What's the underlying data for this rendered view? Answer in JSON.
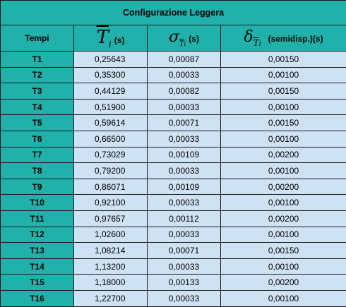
{
  "title": "Configurazione Leggera",
  "headers": {
    "col0": "Tempi",
    "col1_symbol": "T",
    "col1_sub": "i",
    "col1_unit": "(s)",
    "col2_symbol": "σ",
    "col2_sub_symbol": "T",
    "col2_sub": "i",
    "col2_unit": "(s)",
    "col3_symbol": "δ",
    "col3_sub_symbol": "T",
    "col3_sub": "i",
    "col3_unit": "(semidisp.)(s)"
  },
  "rows": [
    {
      "label": "T1",
      "mean": "0,25643",
      "sigma": "0,00087",
      "delta": "0,00150"
    },
    {
      "label": "T2",
      "mean": "0,35300",
      "sigma": "0,00033",
      "delta": "0,00100"
    },
    {
      "label": "T3",
      "mean": "0,44129",
      "sigma": "0,00082",
      "delta": "0,00150"
    },
    {
      "label": "T4",
      "mean": "0,51900",
      "sigma": "0,00033",
      "delta": "0,00100"
    },
    {
      "label": "T5",
      "mean": "0,59614",
      "sigma": "0,00071",
      "delta": "0,00150"
    },
    {
      "label": "T6",
      "mean": "0,66500",
      "sigma": "0,00033",
      "delta": "0,00100"
    },
    {
      "label": "T7",
      "mean": "0,73029",
      "sigma": "0,00109",
      "delta": "0,00200"
    },
    {
      "label": "T8",
      "mean": "0,79200",
      "sigma": "0,00033",
      "delta": "0,00100"
    },
    {
      "label": "T9",
      "mean": "0,86071",
      "sigma": "0,00109",
      "delta": "0,00200"
    },
    {
      "label": "T10",
      "mean": "0,92100",
      "sigma": "0,00033",
      "delta": "0,00100"
    },
    {
      "label": "T11",
      "mean": "0,97657",
      "sigma": "0,00112",
      "delta": "0,00200"
    },
    {
      "label": "T12",
      "mean": "1,02600",
      "sigma": "0,00033",
      "delta": "0,00100"
    },
    {
      "label": "T13",
      "mean": "1,08214",
      "sigma": "0,00071",
      "delta": "0,00150"
    },
    {
      "label": "T14",
      "mean": "1,13200",
      "sigma": "0,00033",
      "delta": "0,00100"
    },
    {
      "label": "T15",
      "mean": "1,18000",
      "sigma": "0,00133",
      "delta": "0,00200"
    },
    {
      "label": "T16",
      "mean": "1,22700",
      "sigma": "0,00033",
      "delta": "0,00100"
    }
  ],
  "colors": {
    "header_bg": "#20b2aa",
    "cell_bg": "#cfe2f3"
  }
}
